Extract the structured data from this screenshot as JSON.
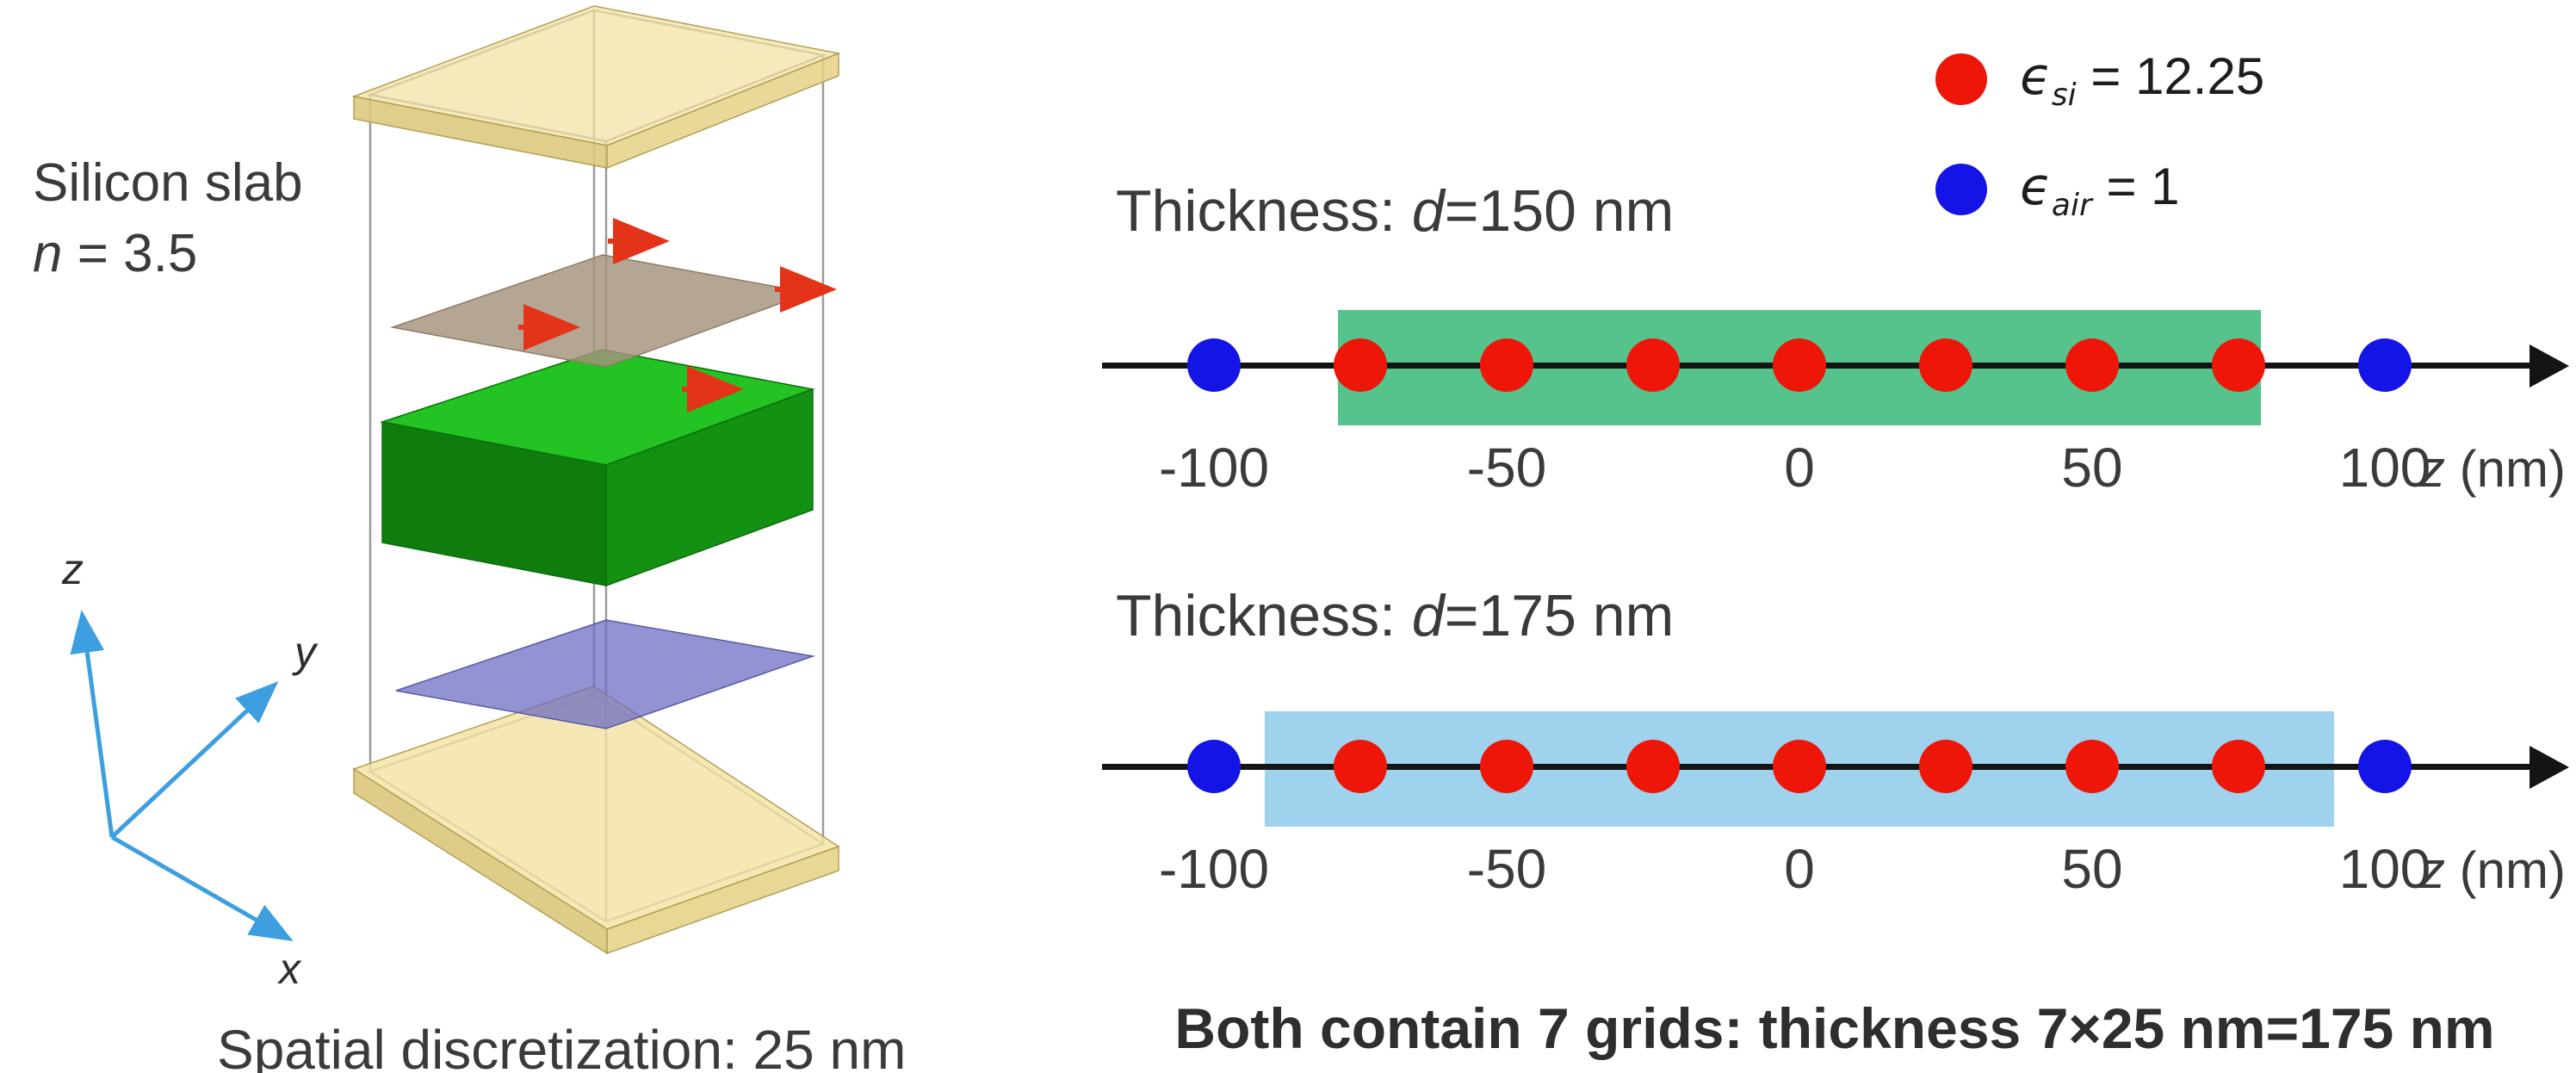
{
  "left": {
    "label_line1": "Silicon slab",
    "n_var": "n",
    "n_rest": " = 3.5",
    "axes": {
      "x": "x",
      "y": "y",
      "z": "z"
    },
    "caption": "Spatial discretization: 25 nm"
  },
  "legend": {
    "si": {
      "symbol": "ϵ",
      "sub": "si",
      "rest": " = 12.25",
      "color": "#ee1609"
    },
    "air": {
      "symbol": "ϵ",
      "sub": "air",
      "rest": " = 1",
      "color": "#1414e6"
    }
  },
  "diagrams": [
    {
      "title_prefix": "Thickness: ",
      "title_var": "d",
      "title_suffix": "=150 nm",
      "band_color": "#56c38c",
      "band_start_nm": -75,
      "band_end_nm": 75,
      "axis_var": "z",
      "axis_rest": " (nm)",
      "ticks": [
        {
          "z": -100,
          "label": "-100"
        },
        {
          "z": -50,
          "label": "-50"
        },
        {
          "z": 0,
          "label": "0"
        },
        {
          "z": 50,
          "label": "50"
        },
        {
          "z": 100,
          "label": "100"
        }
      ],
      "points": [
        {
          "z": -100,
          "type": "air"
        },
        {
          "z": -75,
          "type": "si"
        },
        {
          "z": -50,
          "type": "si"
        },
        {
          "z": -25,
          "type": "si"
        },
        {
          "z": 0,
          "type": "si"
        },
        {
          "z": 25,
          "type": "si"
        },
        {
          "z": 50,
          "type": "si"
        },
        {
          "z": 75,
          "type": "si"
        },
        {
          "z": 100,
          "type": "air"
        }
      ]
    },
    {
      "title_prefix": "Thickness: ",
      "title_var": "d",
      "title_suffix": "=175 nm",
      "band_color": "#9fd2ec",
      "band_start_nm": -87.5,
      "band_end_nm": 87.5,
      "axis_var": "z",
      "axis_rest": " (nm)",
      "ticks": [
        {
          "z": -100,
          "label": "-100"
        },
        {
          "z": -50,
          "label": "-50"
        },
        {
          "z": 0,
          "label": "0"
        },
        {
          "z": 50,
          "label": "50"
        },
        {
          "z": 100,
          "label": "100"
        }
      ],
      "points": [
        {
          "z": -100,
          "type": "air"
        },
        {
          "z": -75,
          "type": "si"
        },
        {
          "z": -50,
          "type": "si"
        },
        {
          "z": -25,
          "type": "si"
        },
        {
          "z": 0,
          "type": "si"
        },
        {
          "z": 25,
          "type": "si"
        },
        {
          "z": 50,
          "type": "si"
        },
        {
          "z": 75,
          "type": "si"
        },
        {
          "z": 100,
          "type": "air"
        }
      ]
    }
  ],
  "footer": "Both contain 7 grids: thickness 7×25 nm=175 nm"
}
